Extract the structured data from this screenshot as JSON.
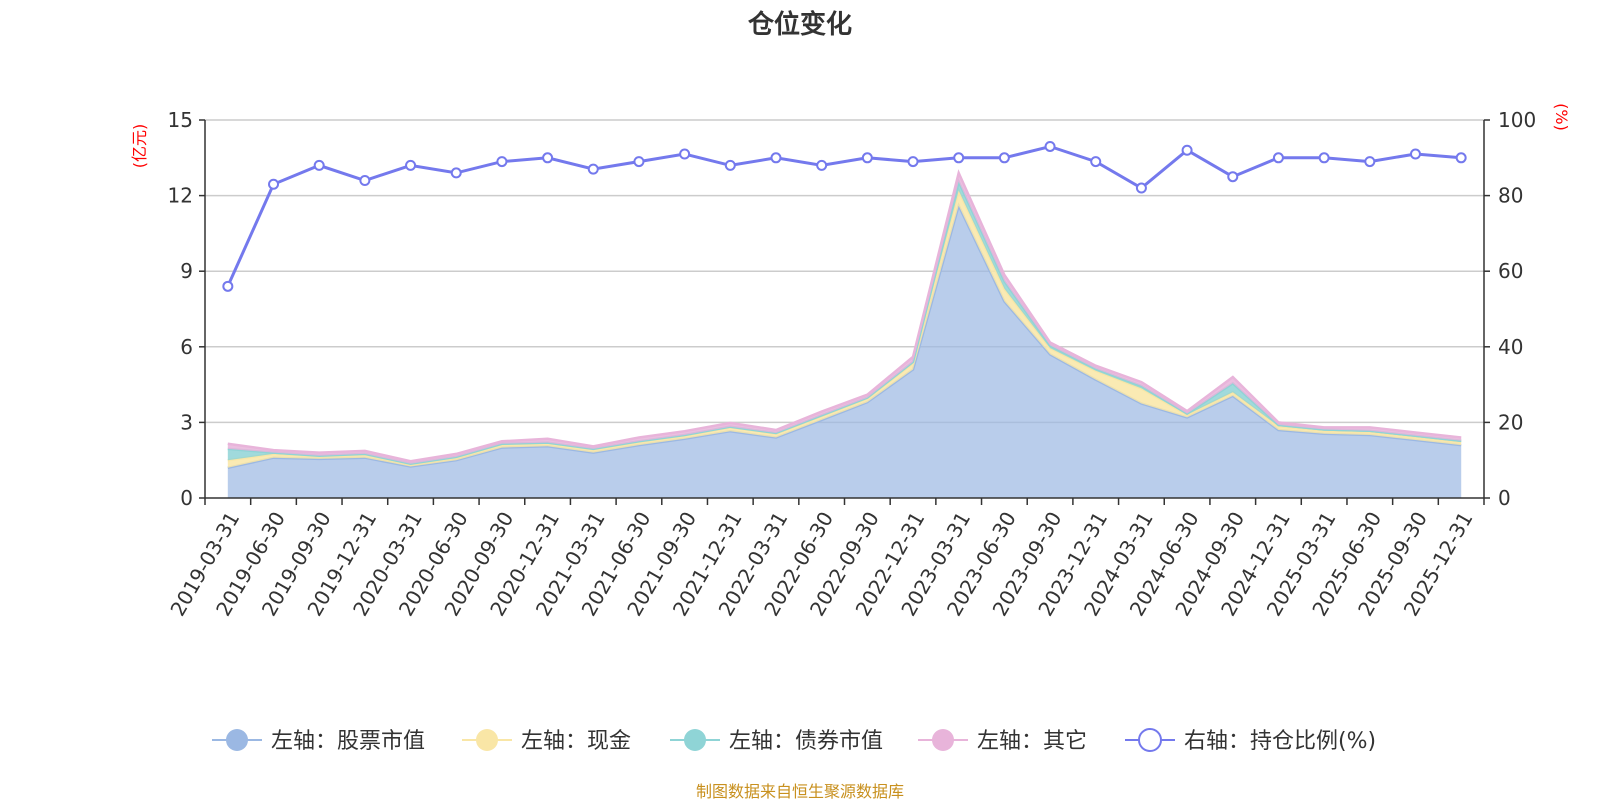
{
  "chart_data": {
    "type": "area",
    "title": "仓位变化",
    "source": "制图数据来自恒生聚源数据库",
    "left_axis_unit": "(亿元)",
    "right_axis_unit": "(%)",
    "left_ylim": [
      0,
      15
    ],
    "left_ticks": [
      0,
      3,
      6,
      9,
      12,
      15
    ],
    "right_ylim": [
      0,
      100
    ],
    "right_ticks": [
      0,
      20,
      40,
      60,
      80,
      100
    ],
    "categories": [
      "2019-03-31",
      "2019-06-30",
      "2019-09-30",
      "2019-12-31",
      "2020-03-31",
      "2020-06-30",
      "2020-09-30",
      "2020-12-31",
      "2021-03-31",
      "2021-06-30",
      "2021-09-30",
      "2021-12-31",
      "2022-03-31",
      "2022-06-30",
      "2022-09-30",
      "2022-12-31",
      "2023-03-31",
      "2023-06-30",
      "2023-09-30",
      "2023-12-31",
      "2024-03-31",
      "2024-06-30",
      "2024-09-30",
      "2024-12-31",
      "2025-03-31",
      "2025-06-30",
      "2025-09-30",
      "2025-12-31"
    ],
    "stacked_series": [
      {
        "name": "左轴：股票市值",
        "color": "#9bb8e3",
        "values": [
          1.2,
          1.6,
          1.55,
          1.6,
          1.25,
          1.5,
          2.0,
          2.05,
          1.8,
          2.1,
          2.35,
          2.65,
          2.4,
          3.1,
          3.8,
          5.1,
          11.6,
          7.8,
          5.7,
          4.7,
          3.75,
          3.2,
          4.05,
          2.7,
          2.55,
          2.5,
          2.3,
          2.1
        ]
      },
      {
        "name": "左轴：现金",
        "color": "#f9e6a6",
        "values": [
          0.3,
          0.15,
          0.1,
          0.12,
          0.08,
          0.1,
          0.12,
          0.12,
          0.12,
          0.12,
          0.12,
          0.15,
          0.15,
          0.15,
          0.15,
          0.25,
          0.6,
          0.5,
          0.25,
          0.35,
          0.6,
          0.1,
          0.15,
          0.15,
          0.12,
          0.12,
          0.12,
          0.12
        ]
      },
      {
        "name": "左轴：债券市值",
        "color": "#8fd4d6",
        "values": [
          0.45,
          0.05,
          0.03,
          0.03,
          0.03,
          0.03,
          0.03,
          0.03,
          0.03,
          0.03,
          0.03,
          0.03,
          0.03,
          0.03,
          0.03,
          0.05,
          0.35,
          0.3,
          0.1,
          0.08,
          0.1,
          0.05,
          0.35,
          0.05,
          0.05,
          0.05,
          0.05,
          0.05
        ]
      },
      {
        "name": "左轴：其它",
        "color": "#e8b4da",
        "values": [
          0.2,
          0.1,
          0.12,
          0.12,
          0.1,
          0.12,
          0.1,
          0.15,
          0.1,
          0.15,
          0.15,
          0.15,
          0.12,
          0.15,
          0.12,
          0.2,
          0.35,
          0.25,
          0.12,
          0.12,
          0.15,
          0.1,
          0.25,
          0.1,
          0.08,
          0.13,
          0.13,
          0.13
        ]
      }
    ],
    "line_series": {
      "name": "右轴：持仓比例(%)",
      "color": "#7479ed",
      "values": [
        56,
        83,
        88,
        84,
        88,
        86,
        89,
        90,
        87,
        89,
        91,
        88,
        90,
        88,
        90,
        89,
        90,
        90,
        93,
        89,
        82,
        92,
        85,
        90,
        90,
        89,
        91,
        90
      ]
    }
  }
}
